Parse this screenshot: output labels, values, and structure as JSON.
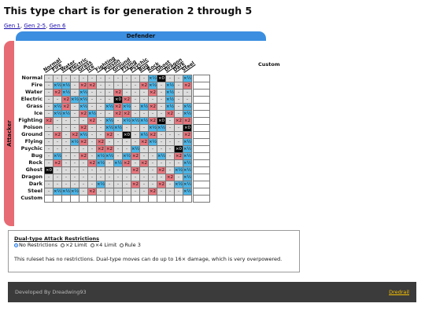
{
  "page": {
    "title": "This type chart is for generation 2 through 5",
    "gen_links": [
      "Gen 1",
      "Gen 2-5",
      "Gen 6"
    ],
    "defender_label": "Defender",
    "attacker_label": "Attacker",
    "custom_label": "Custom"
  },
  "types": [
    "Normal",
    "Fire",
    "Water",
    "Electric",
    "Grass",
    "Ice",
    "Fighting",
    "Poison",
    "Ground",
    "Flying",
    "Psychic",
    "Bug",
    "Rock",
    "Ghost",
    "Dragon",
    "Dark",
    "Steel"
  ],
  "matrix": [
    [
      "-",
      "-",
      "-",
      "-",
      "-",
      "-",
      "-",
      "-",
      "-",
      "-",
      "-",
      "-",
      "×½",
      "×0",
      "-",
      "-",
      "×½"
    ],
    [
      "-",
      "×½",
      "×½",
      "-",
      "×2",
      "×2",
      "-",
      "-",
      "-",
      "-",
      "-",
      "×2",
      "×½",
      "-",
      "×½",
      "-",
      "×2"
    ],
    [
      "-",
      "×2",
      "×½",
      "-",
      "×½",
      "-",
      "-",
      "-",
      "×2",
      "-",
      "-",
      "-",
      "×2",
      "-",
      "×½",
      "-",
      "-"
    ],
    [
      "-",
      "-",
      "×2",
      "×½",
      "×½",
      "-",
      "-",
      "-",
      "×0",
      "×2",
      "-",
      "-",
      "-",
      "-",
      "×½",
      "-",
      "-"
    ],
    [
      "-",
      "×½",
      "×2",
      "-",
      "×½",
      "-",
      "-",
      "×½",
      "×2",
      "×½",
      "-",
      "×½",
      "×2",
      "-",
      "×½",
      "-",
      "×½"
    ],
    [
      "-",
      "×½",
      "×½",
      "-",
      "×2",
      "×½",
      "-",
      "-",
      "×2",
      "×2",
      "-",
      "-",
      "-",
      "-",
      "×2",
      "-",
      "×½"
    ],
    [
      "×2",
      "-",
      "-",
      "-",
      "-",
      "×2",
      "-",
      "×½",
      "-",
      "×½",
      "×½",
      "×½",
      "×2",
      "×0",
      "-",
      "×2",
      "×2"
    ],
    [
      "-",
      "-",
      "-",
      "-",
      "×2",
      "-",
      "-",
      "×½",
      "×½",
      "-",
      "-",
      "-",
      "×½",
      "×½",
      "-",
      "-",
      "×0"
    ],
    [
      "-",
      "×2",
      "-",
      "×2",
      "×½",
      "-",
      "-",
      "×2",
      "-",
      "×0",
      "-",
      "×½",
      "×2",
      "-",
      "-",
      "-",
      "×2"
    ],
    [
      "-",
      "-",
      "-",
      "×½",
      "×2",
      "-",
      "×2",
      "-",
      "-",
      "-",
      "-",
      "×2",
      "×½",
      "-",
      "-",
      "-",
      "×½"
    ],
    [
      "-",
      "-",
      "-",
      "-",
      "-",
      "-",
      "×2",
      "×2",
      "-",
      "-",
      "×½",
      "-",
      "-",
      "-",
      "-",
      "×0",
      "×½"
    ],
    [
      "-",
      "×½",
      "-",
      "-",
      "×2",
      "-",
      "×½",
      "×½",
      "-",
      "×½",
      "×2",
      "-",
      "-",
      "×½",
      "-",
      "×2",
      "×½"
    ],
    [
      "-",
      "×2",
      "-",
      "-",
      "-",
      "×2",
      "×½",
      "-",
      "×½",
      "×2",
      "-",
      "×2",
      "-",
      "-",
      "-",
      "-",
      "×½"
    ],
    [
      "×0",
      "-",
      "-",
      "-",
      "-",
      "-",
      "-",
      "-",
      "-",
      "-",
      "×2",
      "-",
      "-",
      "×2",
      "-",
      "×½",
      "×½"
    ],
    [
      "-",
      "-",
      "-",
      "-",
      "-",
      "-",
      "-",
      "-",
      "-",
      "-",
      "-",
      "-",
      "-",
      "-",
      "×2",
      "-",
      "×½"
    ],
    [
      "-",
      "-",
      "-",
      "-",
      "-",
      "-",
      "×½",
      "-",
      "-",
      "-",
      "×2",
      "-",
      "-",
      "×2",
      "-",
      "×½",
      "×½"
    ],
    [
      "-",
      "×½",
      "×½",
      "×½",
      "-",
      "×2",
      "-",
      "-",
      "-",
      "-",
      "-",
      "-",
      "×2",
      "-",
      "-",
      "-",
      "×½"
    ]
  ],
  "restrictions": {
    "title": "Dual-type Attack Restrictions",
    "options": [
      "No Restrictions",
      "×2 Limit",
      "×4 Limit",
      "Rule 3"
    ],
    "selected_index": 0,
    "description": "This ruleset has no restrictions. Dual-type moves can do up to 16× damage, which is very overpowered."
  },
  "footer": {
    "developer": "Developed By Dreadwing93",
    "link": "Dredrail"
  }
}
